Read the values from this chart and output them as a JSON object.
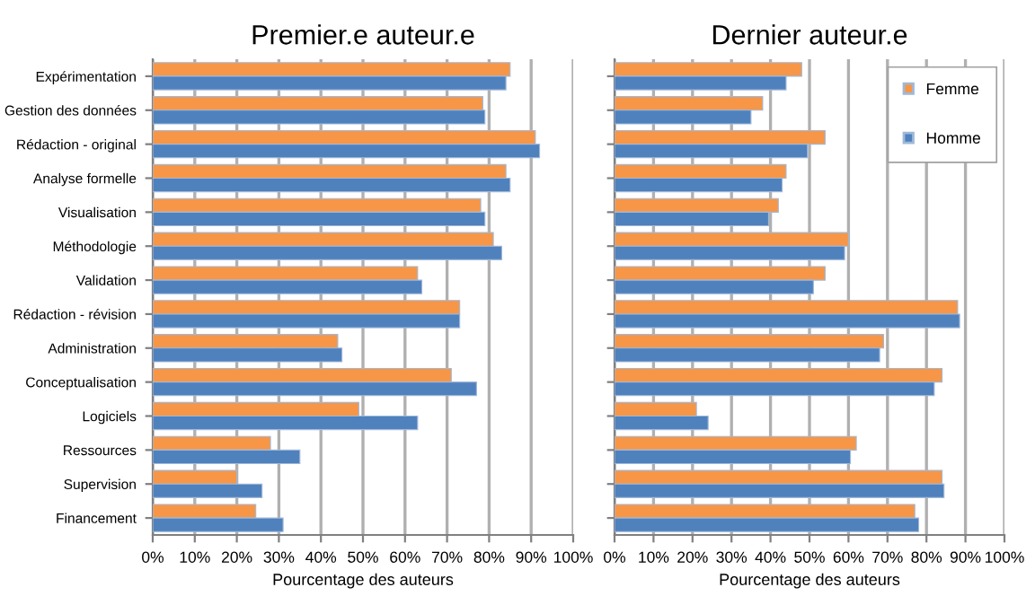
{
  "chart_data": [
    {
      "type": "bar",
      "orientation": "horizontal",
      "title": "Premier.e auteur.e",
      "xlabel": "Pourcentage des auteurs",
      "categories": [
        "Expérimentation",
        "Gestion des données",
        "Rédaction - original",
        "Analyse formelle",
        "Visualisation",
        "Méthodologie",
        "Validation",
        "Rédaction - révision",
        "Administration",
        "Conceptualisation",
        "Logiciels",
        "Ressources",
        "Supervision",
        "Financement"
      ],
      "series": [
        {
          "color": "#f79646",
          "values": [
            85,
            78.5,
            91,
            84,
            78,
            81,
            63,
            73,
            44,
            71,
            49,
            28,
            20,
            24.5
          ]
        },
        {
          "color": "#4f81bd",
          "values": [
            84,
            79,
            92,
            85,
            79,
            83,
            64,
            73,
            45,
            77,
            63,
            35,
            26,
            31
          ]
        }
      ],
      "xlim": [
        0,
        100
      ],
      "xticks": [
        {
          "value": 0,
          "label": "0%"
        },
        {
          "value": 10,
          "label": "10%"
        },
        {
          "value": 20,
          "label": "20%"
        },
        {
          "value": 30,
          "label": "30%"
        },
        {
          "value": 40,
          "label": "40%"
        },
        {
          "value": 50,
          "label": "50%"
        },
        {
          "value": 60,
          "label": "60%"
        },
        {
          "value": 70,
          "label": "70%"
        },
        {
          "value": 80,
          "label": "80%"
        },
        {
          "value": 90,
          "label": "90%"
        },
        {
          "value": 100,
          "label": "100%"
        }
      ],
      "grid": "x"
    },
    {
      "type": "bar",
      "orientation": "horizontal",
      "title": "Dernier auteur.e",
      "xlabel": "Pourcentage des auteurs",
      "categories": [
        null,
        null,
        null,
        null,
        null,
        null,
        null,
        null,
        null,
        null,
        null,
        null,
        null,
        null
      ],
      "series": [
        {
          "name": "Femme",
          "color": "#f79646",
          "values": [
            48,
            38,
            54,
            44,
            42,
            60,
            54,
            88,
            69,
            84,
            21,
            62,
            84,
            77
          ]
        },
        {
          "name": "Homme",
          "color": "#4f81bd",
          "values": [
            44,
            35,
            49.5,
            43,
            39.5,
            59,
            51,
            88.5,
            68,
            82,
            24,
            60.5,
            84.5,
            78
          ]
        }
      ],
      "xlim": [
        0,
        100
      ],
      "xticks": [
        {
          "value": 0,
          "label": "0%"
        },
        {
          "value": 10,
          "label": "10%"
        },
        {
          "value": 20,
          "label": "20%"
        },
        {
          "value": 30,
          "label": "30%"
        },
        {
          "value": 40,
          "label": "40%"
        },
        {
          "value": 50,
          "label": "50%"
        },
        {
          "value": 60,
          "label": "60%"
        },
        {
          "value": 70,
          "label": "70%"
        },
        {
          "value": 80,
          "label": "80%"
        },
        {
          "value": 90,
          "label": "90%"
        },
        {
          "value": 100,
          "label": "100%"
        }
      ],
      "grid": "x",
      "legend": "top right"
    }
  ]
}
